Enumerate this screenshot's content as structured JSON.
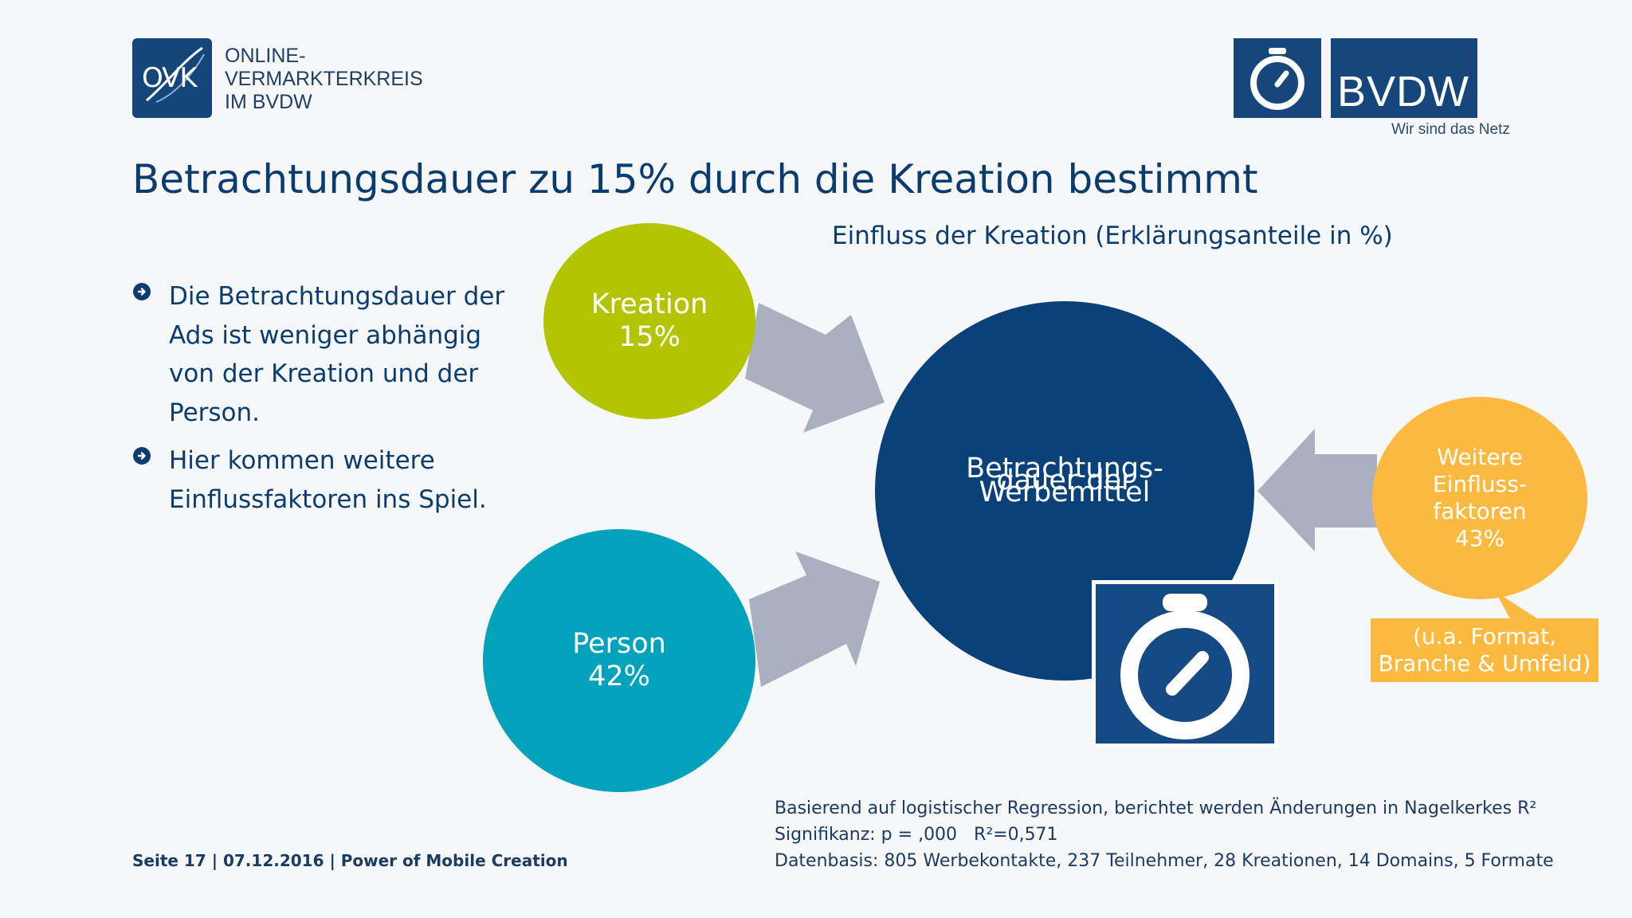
{
  "logos": {
    "ovk": {
      "badge_text": "OVK",
      "lines": [
        "ONLINE-",
        "VERMARKTERKREIS",
        "IM BVDW"
      ]
    },
    "bvdw": {
      "name": "BVDW",
      "slogan": "Wir sind das Netz"
    }
  },
  "title": "Betrachtungsdauer zu 15% durch die Kreation bestimmt",
  "subtitle": "Einfluss der Kreation (Erklärungsanteile in %)",
  "bullets": [
    "Die Betrachtungsdauer der Ads ist weniger abhängig von der Kreation und der Person.",
    "Hier kommen weitere Einflussfaktoren ins Spiel."
  ],
  "diagram": {
    "kreation": {
      "label": "Kreation",
      "value": "15%"
    },
    "person": {
      "label": "Person",
      "value": "42%"
    },
    "center": {
      "lines": [
        "Betrachtungs-",
        "dauer der",
        "Werbemittel"
      ]
    },
    "weitere": {
      "lines": [
        "Weitere",
        "Einfluss-",
        "faktoren",
        "43%"
      ]
    },
    "callout": {
      "lines": [
        "(u.a. Format,",
        "Branche & Umfeld)"
      ]
    }
  },
  "footer": "Seite 17 | 07.12.2016 | Power of Mobile Creation",
  "notes": [
    "Basierend auf logistischer Regression, berichtet werden Änderungen in Nagelkerkes R²",
    "Signifikanz: p = ,000   R²=0,571",
    "Datenbasis: 805 Werbekontakte, 237 Teilnehmer, 28 Kreationen, 14 Domains, 5 Formate"
  ],
  "colors": {
    "navy": "#0a4179",
    "lime": "#b2c500",
    "teal": "#00a3bb",
    "orange": "#fbb940",
    "arrow_gray": "#aab0c0"
  },
  "icons": [
    "stopwatch-icon",
    "arrow-circle-right-icon"
  ]
}
